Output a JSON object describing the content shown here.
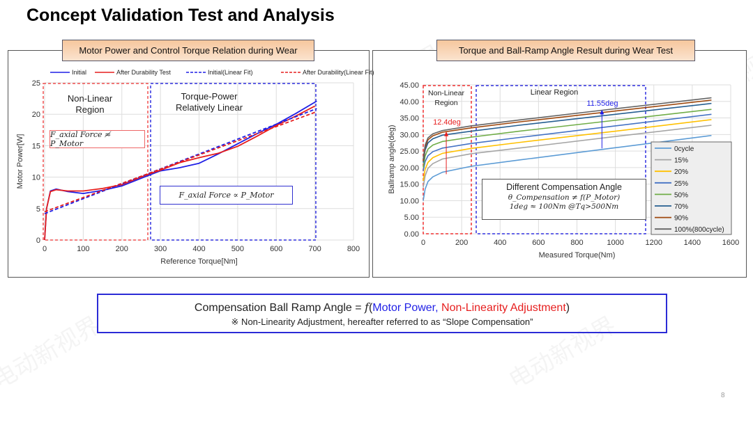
{
  "slide": {
    "title": "Concept Validation Test and Analysis",
    "page_number": "8",
    "watermark": "电动新视界"
  },
  "left_panel": {
    "tab_title": "Motor Power and Control Torque Relation during Wear",
    "region1_label": "Non-Linear Region",
    "region2_label": "Torque-Power Relatively Linear",
    "eq1": "F_axial Force ≉ P_Motor",
    "eq2": "F_axial Force ∝ P_Motor"
  },
  "right_panel": {
    "tab_title": "Torque and Ball-Ramp Angle Result during Wear Test",
    "region1_label": "Non-Linear Region",
    "region2_label": "Linear Region",
    "delta1": "12.4deg",
    "delta2": "11.55deg",
    "box_title": "Different Compensation Angle",
    "box_eq1": "θ_Compensation ≠ f(P_Motor)",
    "box_eq2": "1deg ≈ 100Nm @Tq>500Nm"
  },
  "bottom_box": {
    "line1_prefix": "Compensation Ball Ramp Angle = ",
    "line1_f": "f",
    "line1_open": "(",
    "line1_blue": "Motor Power,",
    "line1_red": " Non-Linearity Adjustment",
    "line1_close": ")",
    "line2": "※ Non-Linearity Adjustment, hereafter referred to as “Slope Compensation”"
  },
  "colors": {
    "blue": "#1f1fe6",
    "red": "#e61e1e",
    "accent_box": "#2b2bd6"
  },
  "chart_data": [
    {
      "type": "line",
      "title": "Motor Power and Control Torque Relation during Wear",
      "xlabel": "Reference Torque[Nm]",
      "ylabel": "Motor Power[W]",
      "xlim": [
        0,
        800
      ],
      "ylim": [
        0,
        25
      ],
      "xticks": [
        0,
        100,
        200,
        300,
        400,
        500,
        600,
        700,
        800
      ],
      "yticks": [
        0,
        5,
        10,
        15,
        20,
        25
      ],
      "grid": true,
      "legend": "top",
      "series": [
        {
          "name": "Initial",
          "color": "#1f1fe6",
          "dash": false,
          "x": [
            0,
            5,
            15,
            30,
            60,
            100,
            150,
            200,
            270,
            300,
            350,
            400,
            450,
            500,
            550,
            600,
            650,
            705
          ],
          "y": [
            0,
            5,
            7.8,
            8.1,
            7.7,
            7.4,
            7.9,
            8.6,
            10.3,
            11.0,
            11.5,
            12.2,
            13.7,
            15.3,
            16.9,
            18.4,
            20.1,
            22.1
          ]
        },
        {
          "name": "After Durability Test",
          "color": "#e61e1e",
          "dash": false,
          "x": [
            0,
            5,
            15,
            30,
            60,
            100,
            150,
            200,
            270,
            300,
            350,
            400,
            450,
            500,
            550,
            600,
            650,
            700
          ],
          "y": [
            0,
            5,
            7.7,
            8.0,
            7.8,
            7.8,
            8.2,
            8.8,
            10.5,
            11.1,
            12.3,
            13.1,
            13.8,
            14.9,
            16.5,
            18.2,
            19.7,
            21.3
          ]
        },
        {
          "name": "Initial(Linear Fit)",
          "color": "#1f1fe6",
          "dash": true,
          "x": [
            0,
            705
          ],
          "y": [
            4.2,
            20.9
          ]
        },
        {
          "name": "After Durability(Linear Fit)",
          "color": "#e61e1e",
          "dash": true,
          "x": [
            0,
            700
          ],
          "y": [
            4.5,
            20.3
          ]
        }
      ]
    },
    {
      "type": "line",
      "title": "Torque and Ball-Ramp Angle Result during Wear Test",
      "xlabel": "Measured Torque(Nm)",
      "ylabel": "Ballramp angle(deg)",
      "xlim": [
        0,
        1600
      ],
      "ylim": [
        0,
        45
      ],
      "xticks": [
        0,
        200,
        400,
        600,
        800,
        1000,
        1200,
        1400,
        1600
      ],
      "yticks": [
        "0.00",
        "5.00",
        "10.00",
        "15.00",
        "20.00",
        "25.00",
        "30.00",
        "35.00",
        "40.00",
        "45.00"
      ],
      "grid": true,
      "legend": "right",
      "x": [
        0,
        10,
        25,
        50,
        100,
        250,
        500,
        1000,
        1500
      ],
      "series": [
        {
          "name": "0cycle",
          "color": "#5B9BD5",
          "y": [
            10,
            13.5,
            15.8,
            17.2,
            18.6,
            20.4,
            22.3,
            26.0,
            29.7
          ]
        },
        {
          "name": "15%",
          "color": "#A5A5A5",
          "y": [
            14,
            17.5,
            19.8,
            21.2,
            22.6,
            24.2,
            25.9,
            29.4,
            32.8
          ]
        },
        {
          "name": "20%",
          "color": "#FFC000",
          "y": [
            16,
            19.5,
            21.6,
            23.0,
            24.3,
            25.8,
            27.6,
            31.0,
            34.5
          ]
        },
        {
          "name": "25%",
          "color": "#4472C4",
          "y": [
            19,
            21.8,
            23.6,
            24.8,
            25.9,
            27.3,
            29.1,
            32.6,
            36.1
          ]
        },
        {
          "name": "50%",
          "color": "#70AD47",
          "y": [
            20,
            23.5,
            25.6,
            26.8,
            27.9,
            29.2,
            31.0,
            34.3,
            37.6
          ]
        },
        {
          "name": "70%",
          "color": "#255E91",
          "y": [
            21.5,
            25.3,
            27.5,
            28.7,
            29.8,
            31.0,
            32.8,
            36.1,
            39.4
          ]
        },
        {
          "name": "90%",
          "color": "#9E480E",
          "y": [
            22,
            26.2,
            28.4,
            29.6,
            30.7,
            32.0,
            33.8,
            37.1,
            40.4
          ]
        },
        {
          "name": "100%(800cycle)",
          "color": "#636363",
          "y": [
            22.5,
            26.8,
            29.0,
            30.2,
            31.2,
            32.6,
            34.4,
            37.8,
            41.1
          ]
        }
      ]
    }
  ]
}
